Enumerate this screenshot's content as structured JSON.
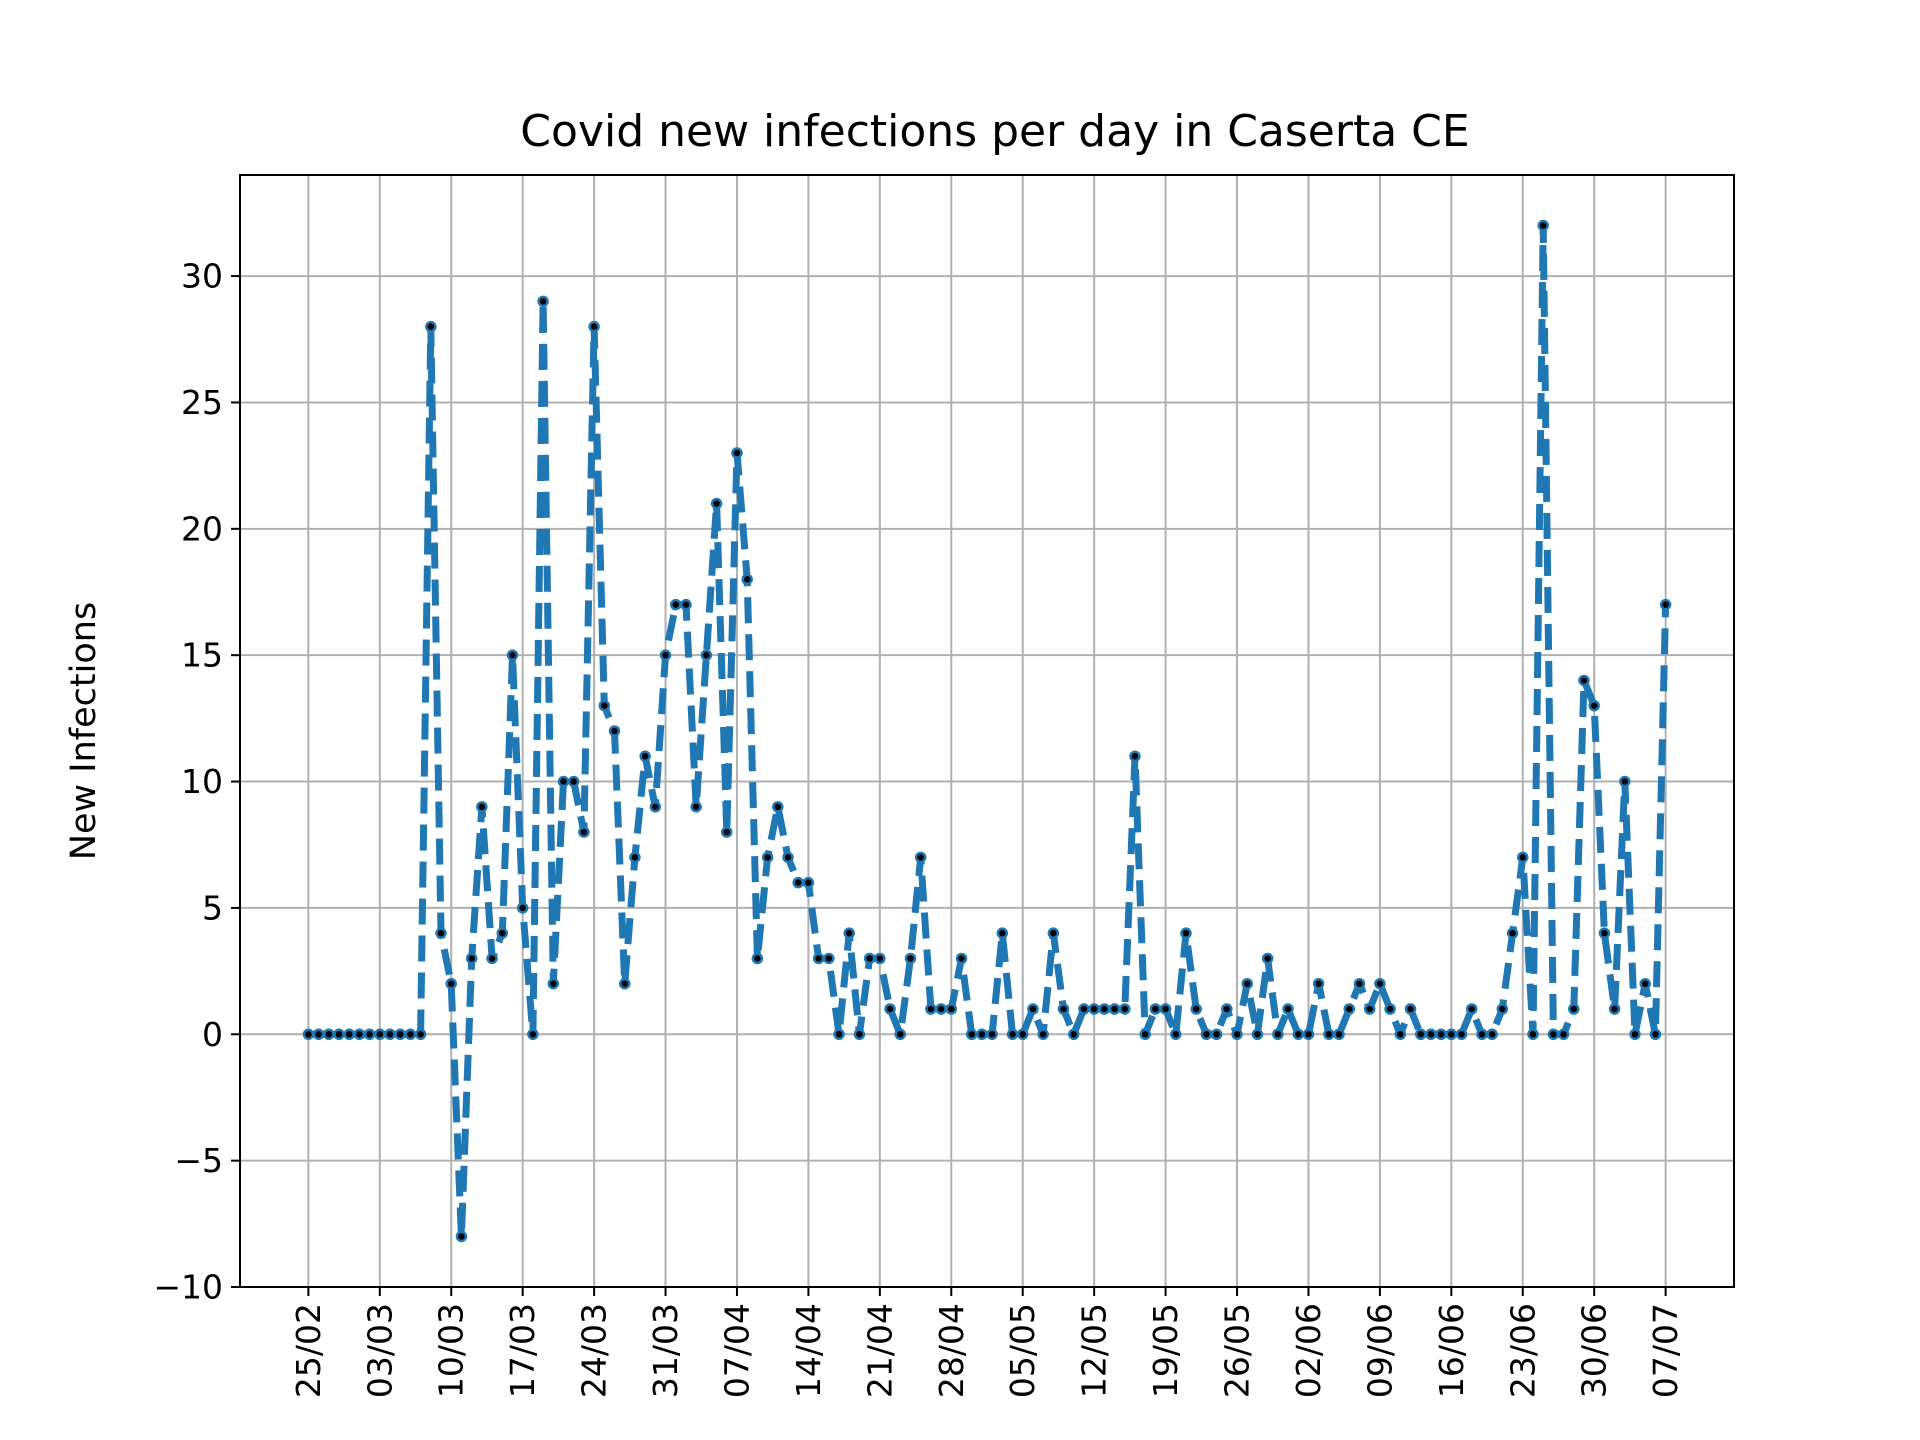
{
  "chart_data": {
    "type": "line",
    "title": "Covid new infections per day in Caserta CE",
    "xlabel": "",
    "ylabel": "New Infections",
    "x_start": "25/02",
    "x_ticks": [
      {
        "label": "25/02",
        "day": 0
      },
      {
        "label": "03/03",
        "day": 7
      },
      {
        "label": "10/03",
        "day": 14
      },
      {
        "label": "17/03",
        "day": 21
      },
      {
        "label": "24/03",
        "day": 28
      },
      {
        "label": "31/03",
        "day": 35
      },
      {
        "label": "07/04",
        "day": 42
      },
      {
        "label": "14/04",
        "day": 49
      },
      {
        "label": "21/04",
        "day": 56
      },
      {
        "label": "28/04",
        "day": 63
      },
      {
        "label": "05/05",
        "day": 70
      },
      {
        "label": "12/05",
        "day": 77
      },
      {
        "label": "19/05",
        "day": 84
      },
      {
        "label": "26/05",
        "day": 91
      },
      {
        "label": "02/06",
        "day": 98
      },
      {
        "label": "09/06",
        "day": 105
      },
      {
        "label": "16/06",
        "day": 112
      },
      {
        "label": "23/06",
        "day": 119
      },
      {
        "label": "30/06",
        "day": 126
      },
      {
        "label": "07/07",
        "day": 133
      }
    ],
    "y_ticks": [
      -10,
      -5,
      0,
      5,
      10,
      15,
      20,
      25,
      30
    ],
    "y_tick_labels": [
      "−10",
      "−5",
      "0",
      "5",
      "10",
      "15",
      "20",
      "25",
      "30"
    ],
    "xlim": [
      -6.7,
      139.7
    ],
    "ylim": [
      -10,
      34
    ],
    "grid": true,
    "legend": "none",
    "series": [
      {
        "color": "#1f77b4",
        "marker_color": "#000000",
        "line_style": "dashed",
        "values": [
          0,
          0,
          0,
          0,
          0,
          0,
          0,
          0,
          0,
          0,
          0,
          0,
          28,
          4,
          2,
          -8,
          3,
          9,
          3,
          4,
          15,
          5,
          0,
          29,
          2,
          10,
          10,
          8,
          28,
          13,
          12,
          2,
          7,
          11,
          9,
          15,
          17,
          17,
          9,
          15,
          21,
          8,
          23,
          18,
          3,
          7,
          9,
          7,
          6,
          6,
          3,
          3,
          0,
          4,
          0,
          3,
          3,
          1,
          0,
          3,
          7,
          1,
          1,
          1,
          3,
          0,
          0,
          0,
          4,
          0,
          0,
          1,
          0,
          4,
          1,
          0,
          1,
          1,
          1,
          1,
          1,
          11,
          0,
          1,
          1,
          0,
          4,
          1,
          0,
          0,
          1,
          0,
          2,
          0,
          3,
          0,
          1,
          0,
          0,
          2,
          0,
          0,
          1,
          2,
          1,
          2,
          1,
          0,
          1,
          0,
          0,
          0,
          0,
          0,
          1,
          0,
          0,
          1,
          4,
          7,
          0,
          32,
          0,
          0,
          1,
          14,
          13,
          4,
          1,
          10,
          0,
          2,
          0,
          17
        ]
      }
    ]
  }
}
